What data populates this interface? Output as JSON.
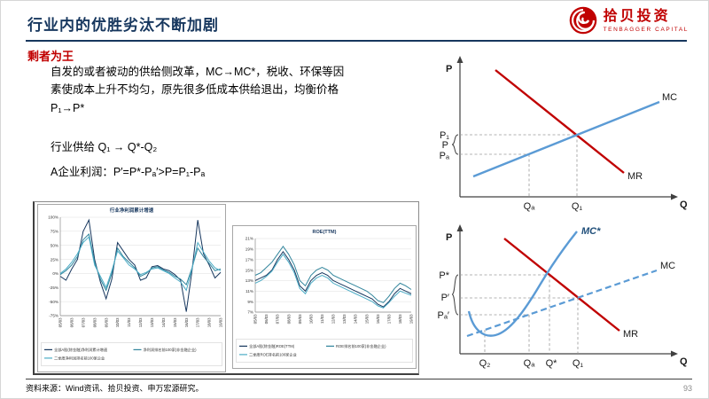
{
  "header": {
    "title": "行业内的优胜劣汰不断加剧",
    "logo_cn": "拾贝投资",
    "logo_en": "TENBAGGER CAPITAL"
  },
  "section": {
    "subtitle": "剩者为王"
  },
  "body": {
    "p1_l1": "自发的或者被动的供给侧改革，MC→MC*，税收、环保等因",
    "p1_l2": "素使成本上升不均匀，原先很多低成本供给退出，均衡价格",
    "p1_l3": "P₁→P*",
    "p2": "行业供给 Q₁ → Q*-Q₂",
    "p3": "A企业利润：P′=P*-Pₐ′>P=P₁-Pₐ"
  },
  "footer": {
    "source": "资料来源：Wind资讯、拾贝投资、申万宏源研究。",
    "page": "93"
  },
  "colors": {
    "accent_navy": "#17375e",
    "accent_red": "#c00000",
    "curve_blue": "#5b9bd5"
  },
  "chart_data": [
    {
      "type": "line",
      "title": "行业净利润累计增速",
      "x_labels": [
        "05/03",
        "06/03",
        "07/03",
        "08/03",
        "09/03",
        "10/03",
        "11/03",
        "12/03",
        "13/03",
        "14/03",
        "15/03",
        "16/03",
        "17/03",
        "18/03",
        "19/03"
      ],
      "ylim": [
        -75,
        100
      ],
      "yticks": [
        100,
        75,
        50,
        25,
        0,
        -25,
        -50,
        -75
      ],
      "legend_position": "bottom",
      "grid": true,
      "series": [
        {
          "name": "全部A股(除金融)净利润累计增速",
          "color": "#17375e",
          "values": [
            -5,
            -12,
            8,
            25,
            75,
            95,
            25,
            -15,
            -45,
            -10,
            55,
            40,
            25,
            15,
            -12,
            -8,
            12,
            14,
            8,
            5,
            -2,
            -12,
            -68,
            5,
            95,
            35,
            15,
            -8,
            2
          ]
        },
        {
          "name": "净利润排名前100家(非金融企业)",
          "color": "#31859c",
          "values": [
            -2,
            5,
            15,
            30,
            60,
            70,
            20,
            -10,
            -30,
            0,
            45,
            30,
            20,
            10,
            -5,
            0,
            10,
            12,
            6,
            2,
            -5,
            -10,
            -20,
            10,
            45,
            30,
            18,
            5,
            8
          ]
        },
        {
          "name": "二季度净利润排名前100家企业",
          "color": "#4bacc6",
          "values": [
            0,
            8,
            20,
            35,
            55,
            65,
            15,
            -5,
            -25,
            5,
            40,
            28,
            15,
            8,
            -2,
            2,
            8,
            10,
            5,
            0,
            -8,
            -15,
            -30,
            8,
            55,
            38,
            22,
            10,
            5
          ]
        }
      ]
    },
    {
      "type": "line",
      "title": "ROE(TTM)",
      "x_labels": [
        "05/03",
        "06/03",
        "07/03",
        "08/03",
        "09/03",
        "10/03",
        "11/03",
        "12/03",
        "13/03",
        "14/03",
        "15/03",
        "16/03",
        "17/03",
        "18/03",
        "19/03"
      ],
      "ylim": [
        7,
        21
      ],
      "yticks": [
        21,
        19,
        17,
        15,
        13,
        11,
        9,
        7
      ],
      "legend_position": "bottom",
      "grid": true,
      "series": [
        {
          "name": "全部A股(除金融)ROE(TTM)",
          "color": "#17375e",
          "values": [
            13,
            13.5,
            14,
            15,
            17,
            18.5,
            17,
            15,
            12,
            11,
            13,
            14,
            14.5,
            14,
            13,
            12.5,
            12,
            11.5,
            11,
            10.5,
            10,
            9.5,
            8.5,
            8,
            9,
            10.5,
            11.5,
            11,
            10.5
          ]
        },
        {
          "name": "ROE排名前100家(非金融企业)",
          "color": "#31859c",
          "values": [
            14,
            14.5,
            15.5,
            16.5,
            18,
            19.5,
            18,
            16,
            13,
            12,
            14,
            15,
            15.5,
            15,
            14,
            13.5,
            13,
            12.5,
            12,
            11.5,
            11,
            10.2,
            9.2,
            8.8,
            10,
            11.5,
            12.5,
            12,
            11.3
          ]
        },
        {
          "name": "二季度ROE排名前100家企业",
          "color": "#4bacc6",
          "values": [
            12.5,
            13,
            13.8,
            14.8,
            16.5,
            18,
            16.5,
            14.5,
            11.5,
            10.5,
            12.5,
            13.5,
            14,
            13.5,
            12.5,
            12,
            11.5,
            11,
            10.5,
            10,
            9.5,
            9,
            8.2,
            7.8,
            8.8,
            10,
            11,
            10.6,
            10.2
          ]
        }
      ]
    }
  ],
  "diagram1": {
    "p_axis": "P",
    "q_axis": "Q",
    "mc": "MC",
    "mr": "MR",
    "p1": "P₁",
    "p": "P",
    "pa": "Pₐ",
    "qa": "Qₐ",
    "q1": "Q₁"
  },
  "diagram2": {
    "p_axis": "P",
    "q_axis": "Q",
    "mc_star": "MC*",
    "mc": "MC",
    "mr": "MR",
    "p_star": "P*",
    "p_prime": "P′",
    "pa_prime": "Pₐ′",
    "q2": "Q₂",
    "qa": "Qₐ",
    "q_star": "Q*",
    "q1": "Q₁"
  }
}
